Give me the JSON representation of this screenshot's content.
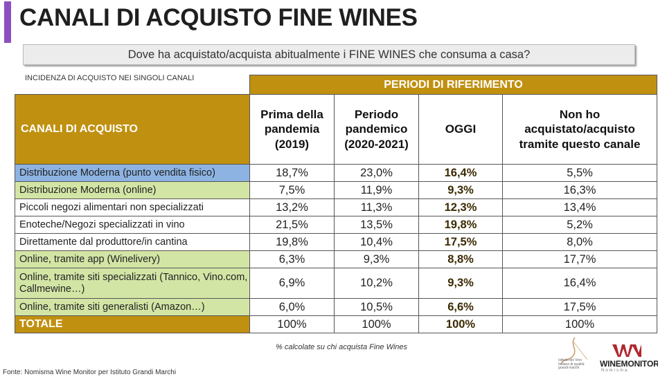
{
  "title": "CANALI DI ACQUISTO FINE WINES",
  "question": "Dove ha acquistato/acquista abitualmente i FINE WINES che consuma a casa?",
  "incidence_label": "INCIDENZA DI ACQUISTO NEI SINGOLI CANALI",
  "table": {
    "periods_header": "PERIODI DI RIFERIMENTO",
    "channels_header": "CANALI DI ACQUISTO",
    "columns": [
      "Prima della pandemia (2019)",
      "Periodo pandemico (2020-2021)",
      "OGGI",
      "Non ho acquistato/acquisto tramite questo canale"
    ],
    "rows": [
      {
        "label": "Distribuzione Moderna (punto vendita fisico)",
        "color": "#8db3e2",
        "values": [
          "18,7%",
          "23,0%",
          "16,4%",
          "5,5%"
        ]
      },
      {
        "label": "Distribuzione Moderna (online)",
        "color": "#d3e5a5",
        "values": [
          "7,5%",
          "11,9%",
          "9,3%",
          "16,3%"
        ]
      },
      {
        "label": "Piccoli negozi alimentari non specializzati",
        "color": "#ffffff",
        "values": [
          "13,2%",
          "11,3%",
          "12,3%",
          "13,4%"
        ]
      },
      {
        "label": "Enoteche/Negozi specializzati in vino",
        "color": "#ffffff",
        "values": [
          "21,5%",
          "13,5%",
          "19,8%",
          "5,2%"
        ]
      },
      {
        "label": "Direttamente dal produttore/in cantina",
        "color": "#ffffff",
        "values": [
          "19,8%",
          "10,4%",
          "17,5%",
          "8,0%"
        ]
      },
      {
        "label": "Online, tramite app (Winelivery)",
        "color": "#d3e5a5",
        "values": [
          "6,3%",
          "9,3%",
          "8,8%",
          "17,7%"
        ]
      },
      {
        "label": "Online, tramite siti specializzati (Tannico, Vino.com, Callmewine…)",
        "color": "#d3e5a5",
        "values": [
          "6,9%",
          "10,2%",
          "9,3%",
          "16,4%"
        ]
      },
      {
        "label": "Online, tramite siti generalisti (Amazon…)",
        "color": "#d3e5a5",
        "values": [
          "6,0%",
          "10,5%",
          "6,6%",
          "17,5%"
        ]
      }
    ],
    "total": {
      "label": "TOTALE",
      "values": [
        "100%",
        "100%",
        "100%",
        "100%"
      ]
    }
  },
  "note": "% calcolate su chi acquista Fine Wines",
  "source": "Fonte: Nomisma Wine Monitor per Istituto Grandi Marchi",
  "logos": {
    "igm_text": "Istituto del Vino Italiano di qualità grandi marchi",
    "wm_text": "WINEMONITOR",
    "wm_sub": "Nomisma"
  },
  "colors": {
    "accent": "#8c4fc0",
    "gold": "#c09010",
    "blue_row": "#8db3e2",
    "green_row": "#d3e5a5",
    "wm_red": "#b0282e"
  }
}
